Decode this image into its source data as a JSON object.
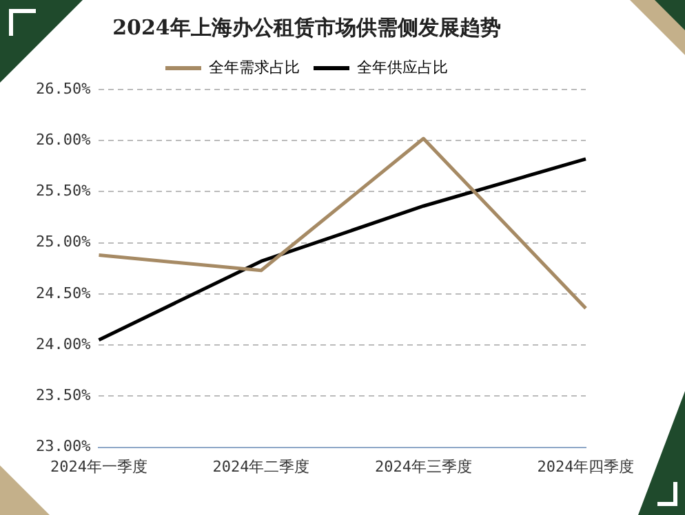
{
  "chart_data": {
    "type": "line",
    "title": "2024年上海办公租赁市场供需侧发展趋势",
    "categories": [
      "2024年一季度",
      "2024年二季度",
      "2024年三季度",
      "2024年四季度"
    ],
    "series": [
      {
        "name": "全年需求占比",
        "color": "#a68a64",
        "values": [
          24.88,
          24.73,
          26.02,
          24.36
        ]
      },
      {
        "name": "全年供应占比",
        "color": "#000000",
        "values": [
          24.05,
          24.82,
          25.36,
          25.82
        ]
      }
    ],
    "ylim": [
      23,
      26.5
    ],
    "yticks": [
      {
        "value": 23,
        "label": "23.00%"
      },
      {
        "value": 23.5,
        "label": "23.50%"
      },
      {
        "value": 24,
        "label": "24.00%"
      },
      {
        "value": 24.5,
        "label": "24.50%"
      },
      {
        "value": 25,
        "label": "25.00%"
      },
      {
        "value": 25.5,
        "label": "25.50%"
      },
      {
        "value": 26,
        "label": "26.00%"
      },
      {
        "value": 26.5,
        "label": "26.50%"
      }
    ],
    "grid": "y",
    "legend": "top",
    "marker": "none",
    "line_style": "solid"
  }
}
